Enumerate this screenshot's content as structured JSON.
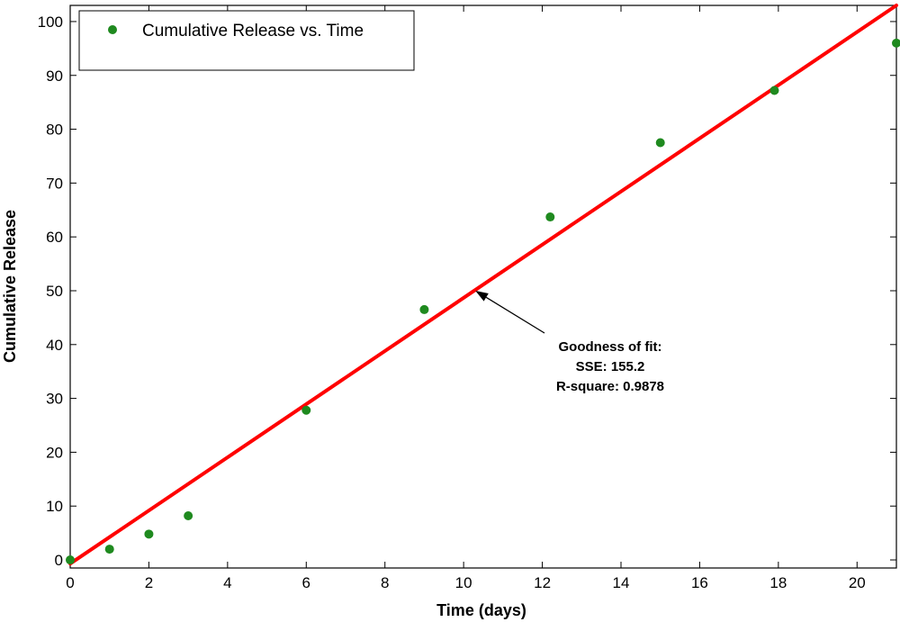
{
  "chart_data": {
    "type": "scatter",
    "xlabel": "Time (days)",
    "ylabel": "Cumulative Release",
    "xlim": [
      0,
      21
    ],
    "ylim": [
      -1.5,
      103
    ],
    "xticks": [
      0,
      2,
      4,
      6,
      8,
      10,
      12,
      14,
      16,
      18,
      20
    ],
    "yticks": [
      0,
      10,
      20,
      30,
      40,
      50,
      60,
      70,
      80,
      90,
      100
    ],
    "grid": false,
    "legend_position": "top-left",
    "series": [
      {
        "name": "Cumulative Release vs. Time",
        "kind": "scatter",
        "color": "#1f8a1f",
        "x": [
          0,
          1,
          2,
          3,
          6,
          9,
          12.2,
          15,
          17.9,
          21
        ],
        "y": [
          0,
          2,
          4.8,
          8.2,
          27.8,
          46.5,
          63.7,
          77.5,
          87.2,
          96
        ]
      }
    ],
    "fit_line": {
      "color": "#ff0000",
      "x": [
        0,
        21
      ],
      "y": [
        -0.7,
        103
      ]
    },
    "annotation": {
      "lines": [
        "Goodness of fit:",
        "SSE: 155.2",
        "R-square: 0.9878"
      ],
      "arrow_to": [
        10.3,
        50
      ]
    }
  }
}
